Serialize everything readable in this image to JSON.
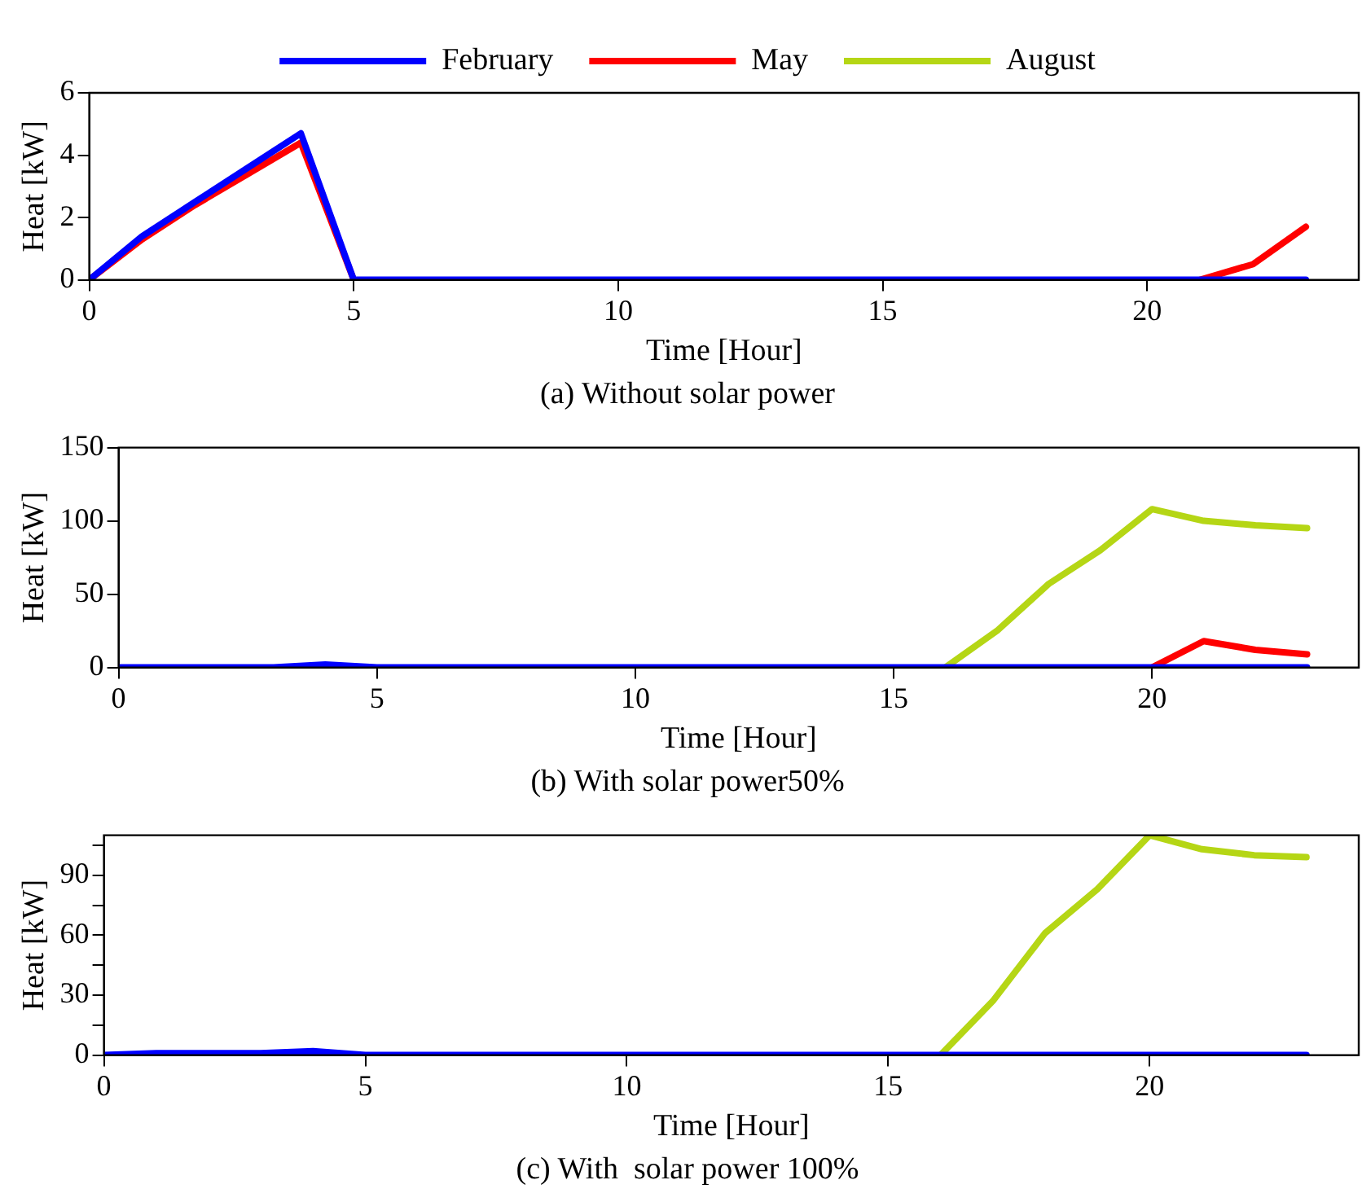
{
  "chart_data": [
    {
      "type": "line",
      "title": "(a) Without solar power",
      "xlabel": "Time [Hour]",
      "ylabel": "Heat [kW]",
      "x": [
        0,
        1,
        2,
        3,
        4,
        5,
        6,
        7,
        8,
        9,
        10,
        11,
        12,
        13,
        14,
        15,
        16,
        17,
        18,
        19,
        20,
        21,
        22,
        23
      ],
      "xlim": [
        0,
        24
      ],
      "xticks": [
        0,
        5,
        10,
        15,
        20
      ],
      "ylim": [
        0,
        6
      ],
      "yticks": [
        0,
        2,
        4,
        6
      ],
      "grid": false,
      "legend": "top",
      "marker": "none",
      "line_style": "solid",
      "series": [
        {
          "name": "February",
          "color": "#0000ff",
          "values": [
            0,
            1.4,
            2.5,
            3.6,
            4.7,
            0,
            0,
            0,
            0,
            0,
            0,
            0,
            0,
            0,
            0,
            0,
            0,
            0,
            0,
            0,
            0,
            0,
            0,
            0
          ]
        },
        {
          "name": "May",
          "color": "#ff0000",
          "values": [
            0,
            1.3,
            2.4,
            3.4,
            4.4,
            0,
            null,
            null,
            null,
            null,
            null,
            null,
            null,
            null,
            null,
            null,
            null,
            null,
            null,
            null,
            null,
            0,
            0.5,
            1.7
          ]
        },
        {
          "name": "August",
          "color": "#b5d615",
          "values": [
            null,
            null,
            null,
            null,
            null,
            null,
            null,
            null,
            null,
            null,
            null,
            null,
            null,
            null,
            null,
            null,
            null,
            null,
            null,
            null,
            null,
            null,
            null,
            null
          ]
        }
      ]
    },
    {
      "type": "line",
      "title": "(b) With solar power50%",
      "xlabel": "Time [Hour]",
      "ylabel": "Heat [kW]",
      "x": [
        0,
        1,
        2,
        3,
        4,
        5,
        6,
        7,
        8,
        9,
        10,
        11,
        12,
        13,
        14,
        15,
        16,
        17,
        18,
        19,
        20,
        21,
        22,
        23
      ],
      "xlim": [
        0,
        24
      ],
      "xticks": [
        0,
        5,
        10,
        15,
        20
      ],
      "ylim": [
        0,
        150
      ],
      "yticks": [
        0,
        50,
        100,
        150
      ],
      "grid": false,
      "legend": false,
      "marker": "none",
      "line_style": "solid",
      "series": [
        {
          "color": "#0000ff",
          "values": [
            0,
            0,
            0,
            0,
            2,
            0,
            0,
            0,
            0,
            0,
            0,
            0,
            0,
            0,
            0,
            0,
            0,
            0,
            0,
            0,
            0,
            0,
            0,
            0
          ]
        },
        {
          "color": "#ff0000",
          "values": [
            null,
            null,
            null,
            null,
            null,
            null,
            null,
            null,
            null,
            null,
            null,
            null,
            null,
            null,
            null,
            null,
            null,
            null,
            null,
            null,
            0,
            18,
            12,
            9
          ]
        },
        {
          "color": "#b5d615",
          "values": [
            null,
            null,
            null,
            null,
            null,
            null,
            null,
            null,
            null,
            null,
            null,
            null,
            null,
            null,
            null,
            null,
            0,
            25,
            57,
            80,
            108,
            100,
            97,
            95
          ]
        }
      ]
    },
    {
      "type": "line",
      "title": "(c) With  solar power 100%",
      "xlabel": "Time [Hour]",
      "ylabel": "Heat [kW]",
      "x": [
        0,
        1,
        2,
        3,
        4,
        5,
        6,
        7,
        8,
        9,
        10,
        11,
        12,
        13,
        14,
        15,
        16,
        17,
        18,
        19,
        20,
        21,
        22,
        23
      ],
      "xlim": [
        0,
        24
      ],
      "xticks": [
        0,
        5,
        10,
        15,
        20
      ],
      "ylim": [
        0,
        110
      ],
      "yticks": [
        0,
        {
          "value": 15,
          "label": null
        },
        30,
        {
          "value": 45,
          "label": null
        },
        60,
        {
          "value": 75,
          "label": null
        },
        90,
        {
          "value": 105,
          "label": null
        }
      ],
      "grid": false,
      "legend": false,
      "marker": "none",
      "line_style": "solid",
      "series": [
        {
          "color": "#0000ff",
          "values": [
            0,
            1,
            1,
            1,
            2,
            0,
            0,
            0,
            0,
            0,
            0,
            0,
            0,
            0,
            0,
            0,
            0,
            0,
            0,
            0,
            0,
            0,
            0,
            0
          ]
        },
        {
          "color": "#b5d615",
          "values": [
            null,
            null,
            null,
            null,
            null,
            null,
            null,
            null,
            null,
            null,
            null,
            null,
            null,
            null,
            null,
            null,
            0,
            27,
            61,
            83,
            110,
            103,
            100,
            99
          ]
        }
      ]
    }
  ]
}
